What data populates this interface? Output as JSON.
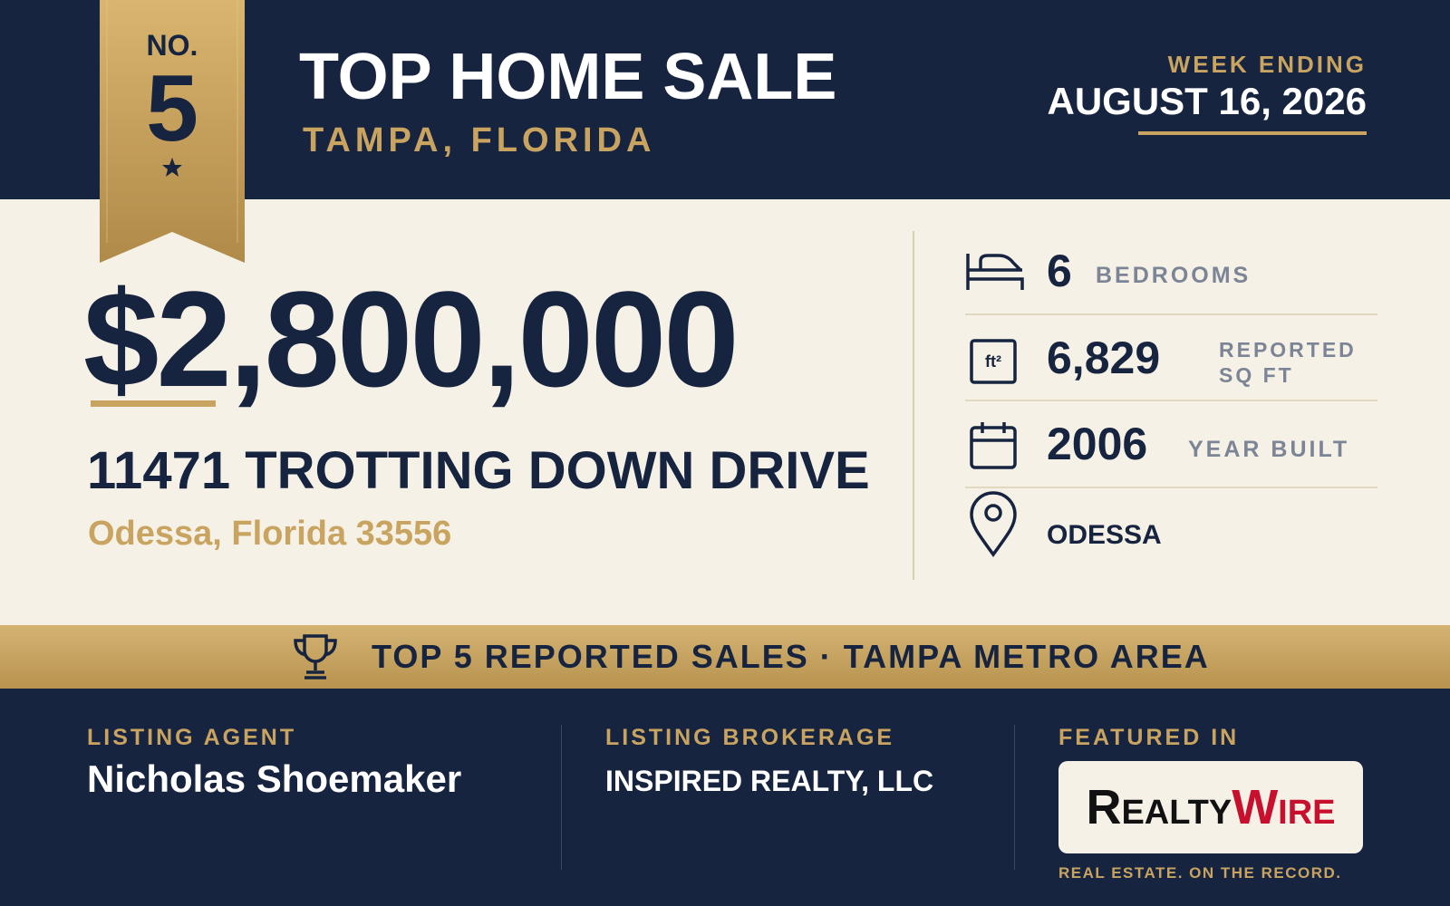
{
  "ribbon": {
    "no_label": "NO.",
    "rank": "5"
  },
  "header": {
    "title": "TOP HOME SALE",
    "location": "TAMPA, FLORIDA",
    "week_label": "WEEK ENDING",
    "week_date": "AUGUST 16, 2026"
  },
  "price": "$2,800,000",
  "address": {
    "street": "11471 TROTTING DOWN DRIVE",
    "city_line": "Odessa, Florida 33556"
  },
  "stats": [
    {
      "value": "6",
      "label": "BEDROOMS"
    },
    {
      "value": "6,829",
      "label": "REPORTED SQ FT"
    },
    {
      "value": "2006",
      "label": "YEAR BUILT"
    },
    {
      "value": "ODESSA"
    }
  ],
  "banner": "TOP 5 REPORTED SALES · TAMPA METRO AREA",
  "footer": {
    "agent_label": "LISTING AGENT",
    "agent": "Nicholas Shoemaker",
    "brokerage_label": "LISTING BROKERAGE",
    "brokerage": "INSPIRED REALTY, LLC",
    "featured_label": "FEATURED IN",
    "logo_part1": "Realty",
    "logo_part2": "Wire",
    "tagline": "REAL ESTATE. ON THE RECORD."
  }
}
